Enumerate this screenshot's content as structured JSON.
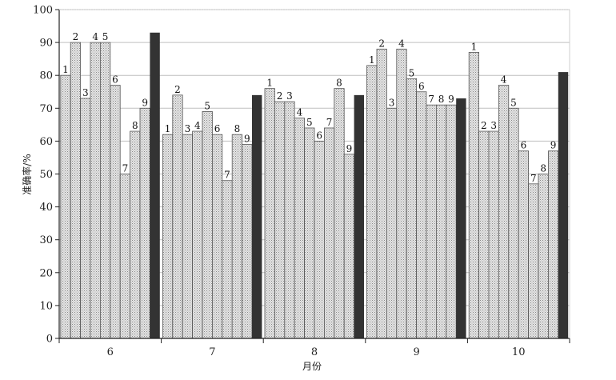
{
  "chart_data": {
    "type": "bar",
    "title": "",
    "xlabel": "月份",
    "ylabel": "准确率/%",
    "ylim": [
      0,
      100
    ],
    "yticks": [
      0,
      10,
      20,
      30,
      40,
      50,
      60,
      70,
      80,
      90,
      100
    ],
    "grid": true,
    "categories": [
      "6",
      "7",
      "8",
      "9",
      "10"
    ],
    "series": [
      {
        "values": [
          80,
          62,
          76,
          83,
          87
        ],
        "bar_label": "1",
        "fill": "light"
      },
      {
        "values": [
          90,
          74,
          72,
          88,
          63
        ],
        "bar_label": "2",
        "fill": "light"
      },
      {
        "values": [
          73,
          62,
          72,
          70,
          63
        ],
        "bar_label": "3",
        "fill": "light"
      },
      {
        "values": [
          90,
          63,
          67,
          88,
          77
        ],
        "bar_label": "4",
        "fill": "light"
      },
      {
        "values": [
          90,
          69,
          64,
          79,
          70
        ],
        "bar_label": "5",
        "fill": "light"
      },
      {
        "values": [
          77,
          62,
          60,
          75,
          57
        ],
        "bar_label": "6",
        "fill": "light"
      },
      {
        "values": [
          50,
          48,
          64,
          71,
          47
        ],
        "bar_label": "7",
        "fill": "light"
      },
      {
        "values": [
          63,
          62,
          76,
          71,
          50
        ],
        "bar_label": "8",
        "fill": "light"
      },
      {
        "values": [
          70,
          59,
          56,
          71,
          57
        ],
        "bar_label": "9",
        "fill": "light"
      },
      {
        "values": [
          93,
          74,
          74,
          73,
          81
        ],
        "bar_label": "",
        "fill": "dark"
      }
    ],
    "colors": {
      "light_fill": "#d9d9d9",
      "light_stroke": "#555555",
      "dark_fill": "#333333",
      "grid": "#bfbfbf",
      "axis": "#222222"
    }
  }
}
